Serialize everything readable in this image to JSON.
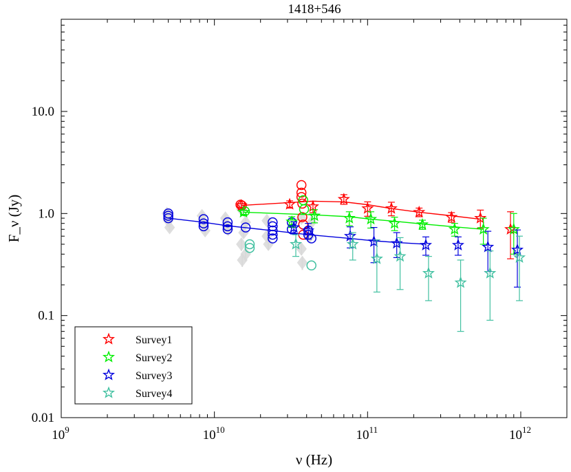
{
  "chart_data": {
    "type": "scatter",
    "title": "1418+546",
    "xlabel": "ν (Hz)",
    "ylabel": "F_ν (Jy)",
    "xscale": "log",
    "yscale": "log",
    "xlim": [
      1000000000,
      2000000000000
    ],
    "ylim": [
      0.01,
      80
    ],
    "x_ticks": [
      {
        "value": 1000000000,
        "base": "10",
        "exp": "9"
      },
      {
        "value": 10000000000,
        "base": "10",
        "exp": "10"
      },
      {
        "value": 100000000000,
        "base": "10",
        "exp": "11"
      },
      {
        "value": 1000000000000,
        "base": "10",
        "exp": "12"
      }
    ],
    "y_ticks": [
      {
        "value": 0.01,
        "label": "0.01"
      },
      {
        "value": 0.1,
        "label": "0.1"
      },
      {
        "value": 1,
        "label": "1.0"
      },
      {
        "value": 10,
        "label": "10.0"
      }
    ],
    "legend": {
      "position": "bottom-left"
    },
    "series": [
      {
        "name": "Survey1",
        "color": "#ff0000",
        "marker": "star",
        "x": [
          15000000000,
          31000000000,
          44000000000,
          70000000000,
          100000000000,
          143000000000,
          217000000000,
          353000000000,
          545000000000,
          857000000000
        ],
        "y": [
          1.2,
          1.23,
          1.17,
          1.38,
          1.12,
          1.12,
          1.03,
          0.92,
          0.9,
          0.7
        ],
        "err": [
          0.05,
          0.1,
          0.15,
          0.15,
          0.18,
          0.17,
          0.1,
          0.1,
          0.18,
          0.34
        ],
        "fit": {
          "x": [
            15000000000,
            44000000000,
            70000000000,
            100000000000,
            143000000000,
            217000000000,
            353000000000,
            545000000000
          ],
          "y": [
            1.2,
            1.32,
            1.3,
            1.22,
            1.12,
            1.03,
            0.95,
            0.88
          ]
        }
      },
      {
        "name": "Survey2",
        "color": "#00ee00",
        "marker": "star",
        "x": [
          15500000000,
          32000000000,
          45000000000,
          76000000000,
          105000000000,
          150000000000,
          228000000000,
          370000000000,
          570000000000,
          900000000000
        ],
        "y": [
          1.03,
          0.83,
          0.95,
          0.9,
          0.88,
          0.8,
          0.78,
          0.7,
          0.7,
          0.7
        ],
        "err": [
          0.05,
          0.1,
          0.14,
          0.14,
          0.16,
          0.12,
          0.08,
          0.1,
          0.2,
          0.3
        ],
        "fit": {
          "x": [
            15500000000,
            45000000000,
            76000000000,
            105000000000,
            150000000000,
            228000000000,
            370000000000,
            570000000000
          ],
          "y": [
            1.03,
            0.97,
            0.93,
            0.88,
            0.84,
            0.79,
            0.74,
            0.7
          ]
        }
      },
      {
        "name": "Survey3",
        "color": "#0000dd",
        "marker": "star",
        "x": [
          33000000000,
          41000000000,
          77000000000,
          110000000000,
          155000000000,
          240000000000,
          390000000000,
          610000000000,
          950000000000
        ],
        "y": [
          0.73,
          0.68,
          0.6,
          0.53,
          0.51,
          0.49,
          0.49,
          0.47,
          0.44
        ],
        "err": [
          0.1,
          0.12,
          0.14,
          0.2,
          0.14,
          0.1,
          0.1,
          0.2,
          0.25
        ],
        "fit": {
          "x": [
            5000000000,
            8500000000,
            12000000000,
            24000000000,
            41000000000,
            77000000000,
            110000000000,
            155000000000,
            240000000000
          ],
          "y": [
            0.9,
            0.82,
            0.76,
            0.68,
            0.62,
            0.57,
            0.54,
            0.52,
            0.5
          ]
        }
      },
      {
        "name": "Survey4",
        "color": "#40c0a0",
        "marker": "star",
        "x": [
          34000000000,
          80000000000,
          115000000000,
          163000000000,
          250000000000,
          405000000000,
          630000000000,
          980000000000
        ],
        "y": [
          0.5,
          0.5,
          0.36,
          0.38,
          0.26,
          0.21,
          0.26,
          0.37
        ],
        "err": [
          0.12,
          0.15,
          0.19,
          0.2,
          0.12,
          0.14,
          0.17,
          0.23
        ],
        "fit": null
      }
    ],
    "circles": [
      {
        "series": "Survey1",
        "x": [
          14800000000,
          15100000000,
          37000000000,
          37000000000,
          37000000000,
          37500000000,
          37500000000,
          38000000000,
          38000000000
        ],
        "y": [
          1.22,
          1.2,
          1.9,
          1.6,
          1.45,
          1.25,
          0.92,
          0.78,
          0.62
        ]
      },
      {
        "series": "Survey2",
        "x": [
          15800000000,
          38000000000,
          38500000000
        ],
        "y": [
          1.05,
          1.35,
          1.1
        ]
      },
      {
        "series": "Survey3",
        "x": [
          5000000000,
          5000000000,
          5000000000,
          8500000000,
          8500000000,
          8500000000,
          12200000000,
          12200000000,
          12200000000,
          16000000000,
          24000000000,
          24000000000,
          24000000000,
          24000000000,
          24000000000,
          32000000000,
          32000000000,
          41000000000,
          41000000000,
          43000000000
        ],
        "y": [
          1.0,
          0.95,
          0.9,
          0.88,
          0.8,
          0.75,
          0.82,
          0.75,
          0.7,
          0.73,
          0.82,
          0.75,
          0.68,
          0.62,
          0.57,
          0.82,
          0.7,
          0.68,
          0.62,
          0.57
        ]
      },
      {
        "series": "Survey4",
        "x": [
          17000000000,
          17000000000,
          43000000000
        ],
        "y": [
          0.5,
          0.46,
          0.31
        ]
      }
    ],
    "historical": {
      "color": "#d9d9d9",
      "x": [
        4900000000,
        5000000000,
        5100000000,
        8300000000,
        8500000000,
        8700000000,
        11800000000,
        12000000000,
        12300000000,
        15000000000,
        15000000000,
        15200000000,
        16000000000,
        16000000000,
        15500000000,
        22000000000,
        22000000000,
        22500000000,
        37000000000,
        37000000000,
        37500000000,
        43000000000,
        42000000000
      ],
      "y": [
        1.0,
        0.85,
        0.73,
        0.95,
        0.8,
        0.68,
        0.9,
        0.78,
        0.7,
        1.1,
        0.5,
        0.35,
        0.82,
        0.4,
        0.65,
        0.85,
        0.6,
        0.5,
        0.9,
        0.45,
        0.33,
        0.82,
        0.6
      ],
      "err": [
        0.08,
        0.08,
        0.06,
        0.08,
        0.07,
        0.06,
        0.07,
        0.07,
        0.06,
        0.1,
        0.07,
        0.05,
        0.08,
        0.06,
        0.07,
        0.08,
        0.07,
        0.06,
        0.08,
        0.06,
        0.05,
        0.08,
        0.07
      ]
    }
  }
}
